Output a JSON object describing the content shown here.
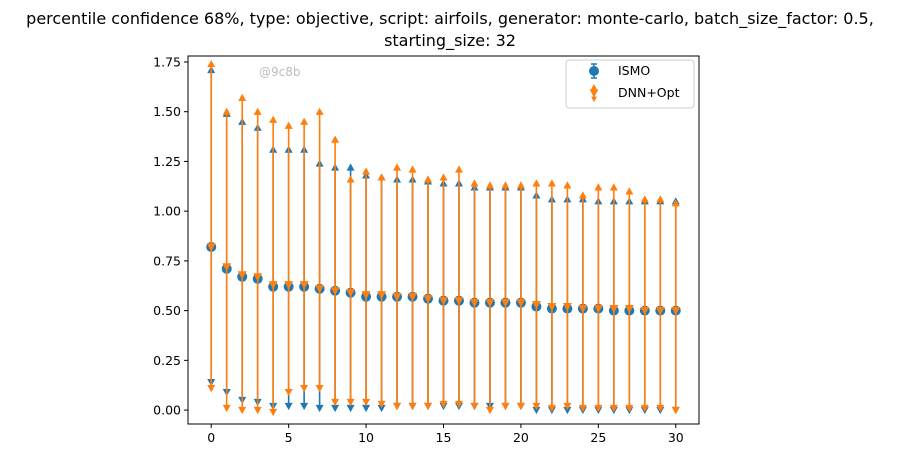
{
  "chart_data": {
    "type": "scatter",
    "title": "percentile confidence 68%, type: objective, script: airfoils, generator: monte-carlo, batch_size_factor: 0.5,",
    "title_line2": "starting_size: 32",
    "watermark": "@9c8b",
    "xlim": [
      -1.5,
      31.5
    ],
    "ylim": [
      -0.07,
      1.78
    ],
    "x_ticks": [
      0,
      5,
      10,
      15,
      20,
      25,
      30
    ],
    "y_ticks": [
      0.0,
      0.25,
      0.5,
      0.75,
      1.0,
      1.25,
      1.5,
      1.75
    ],
    "y_tick_labels": [
      "0.00",
      "0.25",
      "0.50",
      "0.75",
      "1.00",
      "1.25",
      "1.50",
      "1.75"
    ],
    "legend_position": "top-right",
    "grid": false,
    "x": [
      0,
      1,
      2,
      3,
      4,
      5,
      6,
      7,
      8,
      9,
      10,
      11,
      12,
      13,
      14,
      15,
      16,
      17,
      18,
      19,
      20,
      21,
      22,
      23,
      24,
      25,
      26,
      27,
      28,
      29,
      30
    ],
    "series": [
      {
        "name": "ISMO",
        "color": "#1f77b4",
        "marker": "circle",
        "values": [
          0.82,
          0.71,
          0.67,
          0.66,
          0.62,
          0.62,
          0.62,
          0.61,
          0.6,
          0.59,
          0.57,
          0.57,
          0.57,
          0.57,
          0.56,
          0.55,
          0.55,
          0.54,
          0.54,
          0.54,
          0.54,
          0.52,
          0.51,
          0.51,
          0.51,
          0.51,
          0.5,
          0.5,
          0.5,
          0.5,
          0.5
        ],
        "upper": [
          1.71,
          1.49,
          1.45,
          1.42,
          1.31,
          1.31,
          1.31,
          1.24,
          1.22,
          1.22,
          1.18,
          1.17,
          1.16,
          1.16,
          1.15,
          1.14,
          1.14,
          1.12,
          1.12,
          1.12,
          1.12,
          1.08,
          1.06,
          1.06,
          1.06,
          1.05,
          1.05,
          1.05,
          1.05,
          1.05,
          1.05
        ],
        "lower": [
          0.14,
          0.09,
          0.05,
          0.04,
          0.02,
          0.02,
          0.02,
          0.01,
          0.01,
          0.01,
          0.01,
          0.01,
          0.02,
          0.02,
          0.02,
          0.02,
          0.02,
          0.02,
          0.02,
          0.02,
          0.02,
          0.0,
          0.0,
          0.0,
          0.0,
          0.0,
          0.0,
          0.0,
          0.0,
          0.0,
          0.0
        ]
      },
      {
        "name": "DNN+Opt",
        "color": "#ff7f0e",
        "marker": "triangle-down",
        "values": [
          0.82,
          0.72,
          0.68,
          0.67,
          0.63,
          0.63,
          0.63,
          0.61,
          0.6,
          0.59,
          0.58,
          0.58,
          0.57,
          0.57,
          0.56,
          0.55,
          0.55,
          0.54,
          0.54,
          0.54,
          0.54,
          0.53,
          0.52,
          0.52,
          0.51,
          0.51,
          0.51,
          0.51,
          0.5,
          0.5,
          0.5
        ],
        "upper": [
          1.74,
          1.5,
          1.57,
          1.5,
          1.46,
          1.43,
          1.45,
          1.5,
          1.36,
          1.16,
          1.2,
          1.17,
          1.22,
          1.21,
          1.16,
          1.17,
          1.21,
          1.14,
          1.13,
          1.13,
          1.13,
          1.14,
          1.14,
          1.13,
          1.08,
          1.12,
          1.12,
          1.1,
          1.06,
          1.06,
          1.04
        ],
        "lower": [
          0.11,
          0.01,
          0.0,
          0.0,
          -0.01,
          0.09,
          0.11,
          0.11,
          0.04,
          0.04,
          0.04,
          0.03,
          0.02,
          0.02,
          0.02,
          0.03,
          0.03,
          0.02,
          0.0,
          0.02,
          0.02,
          0.02,
          0.01,
          0.02,
          0.01,
          0.01,
          0.01,
          0.01,
          0.01,
          0.01,
          0.0
        ]
      }
    ]
  }
}
